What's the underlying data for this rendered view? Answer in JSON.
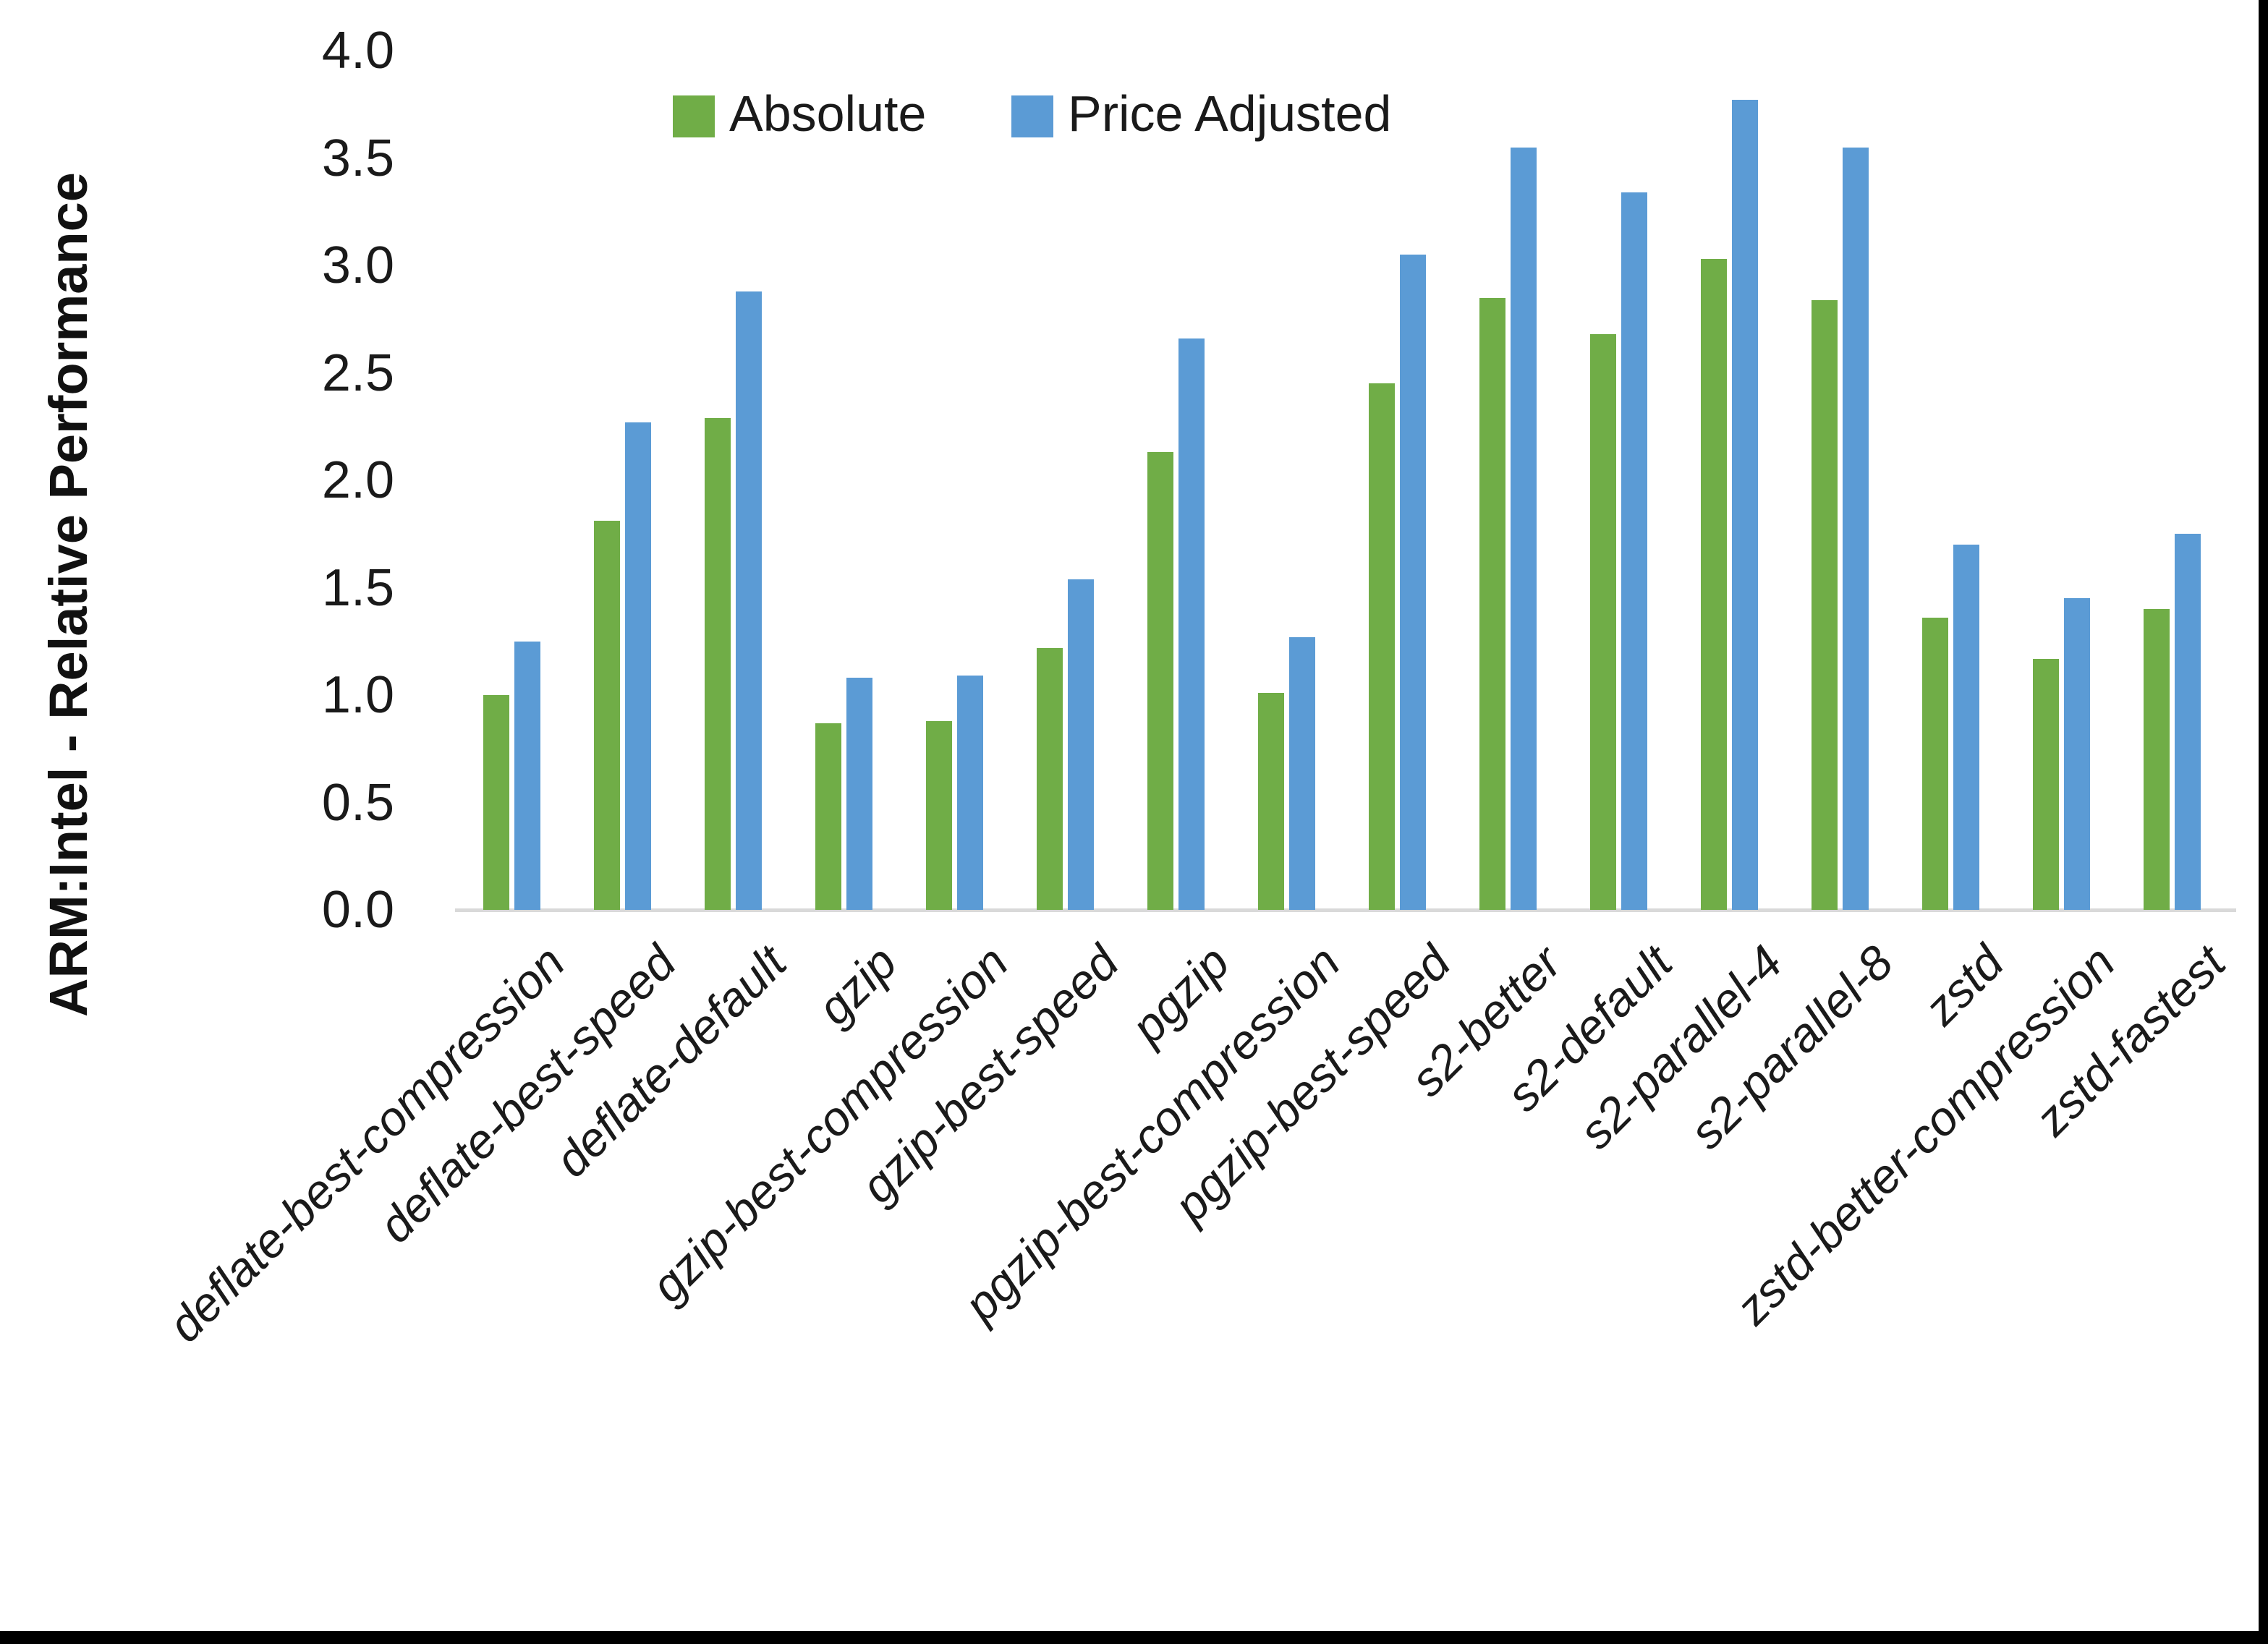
{
  "chart_data": {
    "type": "bar",
    "y_axis_title": "ARM:Intel - Relative Performance",
    "categories": [
      "deflate-best-compression",
      "deflate-best-speed",
      "deflate-default",
      "gzip",
      "gzip-best-compression",
      "gzip-best-speed",
      "pgzip",
      "pgzip-best-compression",
      "pgzip-best-speed",
      "s2-better",
      "s2-default",
      "s2-parallel-4",
      "s2-parallel-8",
      "zstd",
      "zstd-better-compression",
      "zstd-fastest"
    ],
    "series": [
      {
        "name": "Absolute",
        "color": "#70AD47",
        "values": [
          1.0,
          1.81,
          2.29,
          0.87,
          0.88,
          1.22,
          2.13,
          1.01,
          2.45,
          2.85,
          2.68,
          3.03,
          2.84,
          1.36,
          1.17,
          1.4
        ]
      },
      {
        "name": "Price Adjusted",
        "color": "#5B9BD5",
        "values": [
          1.25,
          2.27,
          2.88,
          1.08,
          1.09,
          1.54,
          2.66,
          1.27,
          3.05,
          3.55,
          3.34,
          3.77,
          3.55,
          1.7,
          1.45,
          1.75
        ]
      }
    ],
    "ylim": [
      0.0,
      4.0
    ],
    "y_ticks": [
      "0.0",
      "0.5",
      "1.0",
      "1.5",
      "2.0",
      "2.5",
      "3.0",
      "3.5",
      "4.0"
    ],
    "grid": false,
    "legend_position": "top-center",
    "axis_line_color": "#D9D9D9",
    "text_color": "#1A1A1A",
    "frame_color": "#000000"
  }
}
